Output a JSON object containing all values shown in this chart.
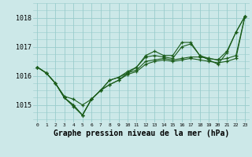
{
  "background_color": "#cce8e8",
  "grid_color": "#99cccc",
  "line_color": "#1a5c1a",
  "marker_color": "#1a5c1a",
  "xlabel": "Graphe pression niveau de la mer (hPa)",
  "xlabel_fontsize": 7,
  "ylabel_ticks": [
    1015,
    1016,
    1017,
    1018
  ],
  "xlim": [
    -0.5,
    23.5
  ],
  "ylim": [
    1014.4,
    1018.5
  ],
  "series": [
    [
      1016.3,
      1016.1,
      1015.75,
      1015.25,
      1014.95,
      1014.65,
      1015.2,
      1015.5,
      1015.85,
      1015.95,
      1016.1,
      1016.3,
      1016.65,
      1016.7,
      1016.65,
      1016.6,
      1017.0,
      1017.1,
      1016.7,
      1016.55,
      1016.4,
      1016.8,
      1017.5,
      1018.05
    ],
    [
      1016.3,
      1016.1,
      1015.75,
      1015.25,
      1015.0,
      1014.65,
      1015.2,
      1015.5,
      1015.7,
      1015.85,
      1016.1,
      1016.2,
      1016.5,
      1016.55,
      1016.6,
      1016.55,
      1016.6,
      1016.65,
      1016.65,
      1016.6,
      1016.55,
      1016.6,
      1016.7,
      1018.05
    ],
    [
      1016.3,
      1016.1,
      1015.75,
      1015.25,
      1015.0,
      1014.65,
      1015.2,
      1015.5,
      1015.7,
      1015.85,
      1016.05,
      1016.15,
      1016.4,
      1016.5,
      1016.55,
      1016.5,
      1016.55,
      1016.6,
      1016.55,
      1016.5,
      1016.45,
      1016.5,
      1016.6,
      1018.05
    ],
    [
      1016.3,
      1016.1,
      1015.75,
      1015.3,
      1015.2,
      1015.0,
      1015.2,
      1015.5,
      1015.85,
      1015.95,
      1016.15,
      1016.3,
      1016.7,
      1016.85,
      1016.7,
      1016.7,
      1017.15,
      1017.15,
      1016.7,
      1016.6,
      1016.55,
      1016.85,
      1017.5,
      1018.05
    ]
  ]
}
